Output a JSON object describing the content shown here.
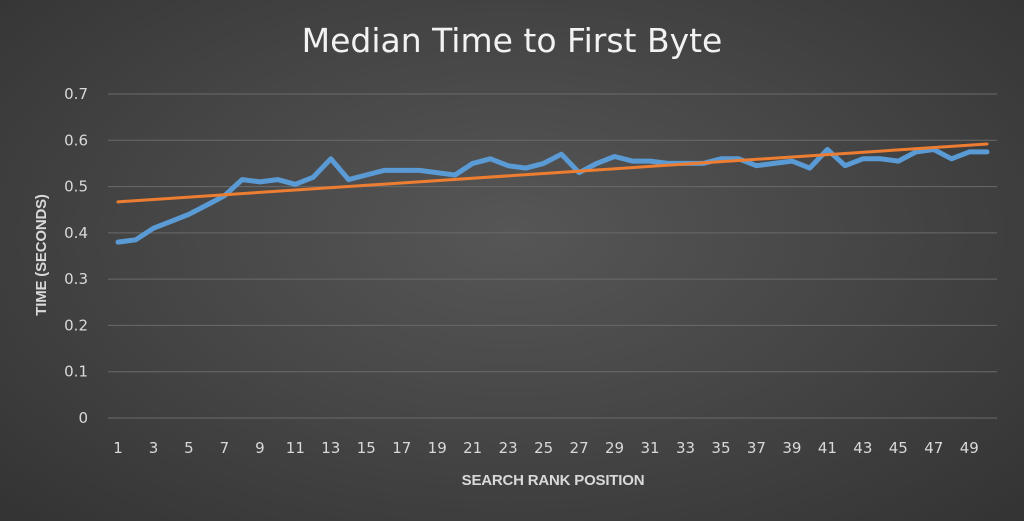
{
  "chart_data": {
    "type": "line",
    "title": "Median Time to First Byte",
    "xlabel": "SEARCH RANK POSITION",
    "ylabel": "TIME (SECONDS)",
    "ylim": [
      0,
      0.7
    ],
    "yticks": [
      "0",
      "0.1",
      "0.2",
      "0.3",
      "0.4",
      "0.5",
      "0.6",
      "0.7"
    ],
    "x": [
      1,
      2,
      3,
      4,
      5,
      6,
      7,
      8,
      9,
      10,
      11,
      12,
      13,
      14,
      15,
      16,
      17,
      18,
      19,
      20,
      21,
      22,
      23,
      24,
      25,
      26,
      27,
      28,
      29,
      30,
      31,
      32,
      33,
      34,
      35,
      36,
      37,
      38,
      39,
      40,
      41,
      42,
      43,
      44,
      45,
      46,
      47,
      48,
      49,
      50
    ],
    "xtick_labels": [
      "1",
      "3",
      "5",
      "7",
      "9",
      "11",
      "13",
      "15",
      "17",
      "19",
      "21",
      "23",
      "25",
      "27",
      "29",
      "31",
      "33",
      "35",
      "37",
      "39",
      "41",
      "43",
      "45",
      "47",
      "49"
    ],
    "grid": true,
    "series": [
      {
        "color": "#5b9bd5",
        "values": [
          0.38,
          0.385,
          0.41,
          0.425,
          0.44,
          0.46,
          0.48,
          0.515,
          0.51,
          0.515,
          0.505,
          0.52,
          0.56,
          0.515,
          0.525,
          0.535,
          0.535,
          0.535,
          0.53,
          0.525,
          0.55,
          0.56,
          0.545,
          0.54,
          0.55,
          0.57,
          0.53,
          0.55,
          0.565,
          0.555,
          0.555,
          0.55,
          0.55,
          0.55,
          0.56,
          0.56,
          0.545,
          0.55,
          0.555,
          0.54,
          0.58,
          0.545,
          0.56,
          0.56,
          0.555,
          0.575,
          0.58,
          0.56,
          0.575,
          0.575
        ]
      },
      {
        "color": "#ed7d31",
        "type": "trendline",
        "start": [
          1,
          0.467
        ],
        "end": [
          50,
          0.592
        ]
      }
    ]
  }
}
